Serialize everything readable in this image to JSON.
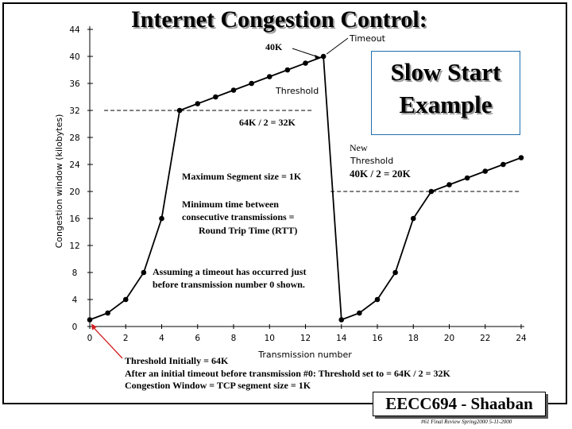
{
  "slide": {
    "title": "Internet Congestion Control:",
    "callout_line1": "Slow Start",
    "callout_line2": "Example",
    "bottom_note_1": "Threshold Initially  = 64K",
    "bottom_note_2": "After an initial timeout before transmission #0:   Threshold  set to  = 64K / 2 = 32K",
    "bottom_note_3": "Congestion Window = TCP segment size = 1K",
    "footer_label": "EECC694 - Shaaban",
    "footer_small": "#61  Final Review  Spring2000   5-11-2000"
  },
  "chart_data": {
    "type": "line",
    "title": "",
    "xlabel": "Transmission number",
    "ylabel": "Congestion window (kilobytes)",
    "xlim": [
      0,
      24
    ],
    "ylim": [
      0,
      44
    ],
    "xticks": [
      0,
      2,
      4,
      6,
      8,
      10,
      12,
      14,
      16,
      18,
      20,
      22,
      24
    ],
    "yticks": [
      0,
      4,
      8,
      12,
      16,
      20,
      24,
      28,
      32,
      36,
      40,
      44
    ],
    "grid": false,
    "series": [
      {
        "x": [
          0,
          1,
          2,
          3,
          4,
          5,
          6,
          7,
          8,
          9,
          10,
          11,
          12,
          13,
          14,
          15,
          16,
          17,
          18,
          19,
          20,
          21,
          22,
          23,
          24
        ],
        "y": [
          1,
          2,
          4,
          8,
          16,
          32,
          33,
          34,
          35,
          36,
          37,
          38,
          39,
          40,
          1,
          2,
          4,
          8,
          16,
          20,
          21,
          22,
          23,
          24,
          25
        ],
        "color": "#000000"
      }
    ],
    "thresholds": [
      {
        "y": 32,
        "x_range": [
          0.8,
          12.4
        ]
      },
      {
        "y": 20,
        "x_range": [
          13.4,
          24
        ]
      }
    ],
    "annotations": {
      "timeout": "Timeout",
      "k40": "40K",
      "threshold": "Threshold",
      "half_32": "64K / 2  = 32K",
      "new": "New",
      "threshold2": "Threshold",
      "half_20": "40K / 2 = 20K",
      "max_seg": "Maximum Segment size = 1K",
      "min_time_1": "Minimum time between",
      "min_time_2": "consecutive transmissions =",
      "min_time_3": "Round Trip Time (RTT)",
      "assume_1": "Assuming a timeout has occurred just",
      "assume_2": "before transmission number 0 shown."
    }
  }
}
